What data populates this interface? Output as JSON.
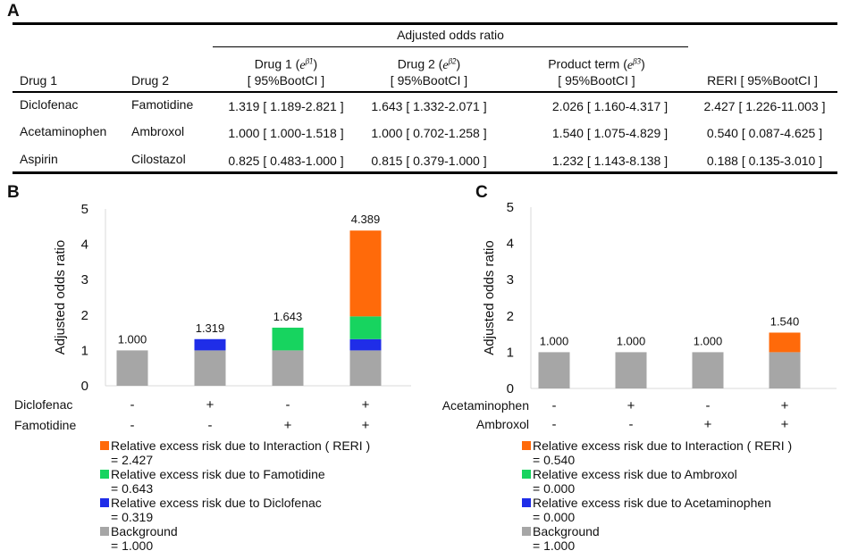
{
  "panel_a": {
    "letter": "A",
    "group_header": "Adjusted odds ratio",
    "col_drug1": "Drug 1",
    "col_drug2": "Drug 2",
    "col_beta1_line1": "Drug 1 (",
    "col_beta1_exp": "e^β̂1",
    "col_beta1_close": ")",
    "col_beta1_line2": "[ 95%BootCI ]",
    "col_beta2_line1": "Drug 2 (",
    "col_beta2_exp": "e^β̂2",
    "col_beta2_close": ")",
    "col_beta2_line2": "[ 95%BootCI ]",
    "col_beta3_line1": "Product term (",
    "col_beta3_exp": "e^β̂3",
    "col_beta3_close": ")",
    "col_beta3_line2": "[ 95%BootCI ]",
    "col_reri": "RERI [ 95%BootCI ]",
    "rows": [
      {
        "drug1": "Diclofenac",
        "drug2": "Famotidine",
        "b1": "1.319 [ 1.189-2.821 ]",
        "b2": "1.643 [ 1.332-2.071 ]",
        "b3": "2.026 [ 1.160-4.317 ]",
        "reri": "2.427 [ 1.226-11.003 ]"
      },
      {
        "drug1": "Acetaminophen",
        "drug2": "Ambroxol",
        "b1": "1.000 [ 1.000-1.518 ]",
        "b2": "1.000 [ 0.702-1.258 ]",
        "b3": "1.540 [ 1.075-4.829 ]",
        "reri": "0.540 [ 0.087-4.625 ]"
      },
      {
        "drug1": "Aspirin",
        "drug2": "Cilostazol",
        "b1": "0.825 [ 0.483-1.000 ]",
        "b2": "0.815 [ 0.379-1.000 ]",
        "b3": "1.232 [ 1.143-8.138 ]",
        "reri": "0.188 [ 0.135-3.010 ]"
      }
    ]
  },
  "colors": {
    "background": "#a6a6a6",
    "drug1": "#1f2de8",
    "drug2": "#17d45f",
    "interaction": "#ff6a0a"
  },
  "chart_data": [
    {
      "type": "bar",
      "stacked": true,
      "panel": "B",
      "ylabel": "Adjusted odds ratio",
      "ylim": [
        0,
        5
      ],
      "yticks": [
        "0",
        "1",
        "2",
        "3",
        "4",
        "5"
      ],
      "row_labels": [
        "Diclofenac",
        "Famotidine"
      ],
      "row_signs": [
        [
          "-",
          "+",
          "-",
          "+"
        ],
        [
          "-",
          "-",
          "+",
          "+"
        ]
      ],
      "totals": [
        "1.000",
        "1.319",
        "1.643",
        "4.389"
      ],
      "series": [
        {
          "name": "Background",
          "color_key": "background",
          "values": [
            1.0,
            1.0,
            1.0,
            1.0
          ]
        },
        {
          "name": "Relative excess risk due to Diclofenac",
          "color_key": "drug1",
          "values": [
            0,
            0.319,
            0,
            0.319
          ]
        },
        {
          "name": "Relative excess risk due to Famotidine",
          "color_key": "drug2",
          "values": [
            0,
            0,
            0.643,
            0.643
          ]
        },
        {
          "name": "Relative excess risk due to Interaction ( RERI )",
          "color_key": "interaction",
          "values": [
            0,
            0,
            0,
            2.427
          ]
        }
      ],
      "legend": [
        {
          "color_key": "interaction",
          "label": "Relative excess risk due to Interaction ( RERI )",
          "value": "= 2.427"
        },
        {
          "color_key": "drug2",
          "label": "Relative excess risk due to Famotidine",
          "value": "= 0.643"
        },
        {
          "color_key": "drug1",
          "label": "Relative excess risk due to Diclofenac",
          "value": "= 0.319"
        },
        {
          "color_key": "background",
          "label": "Background",
          "value": "= 1.000"
        }
      ]
    },
    {
      "type": "bar",
      "stacked": true,
      "panel": "C",
      "ylabel": "Adjusted odds ratio",
      "ylim": [
        0,
        5
      ],
      "yticks": [
        "0",
        "1",
        "2",
        "3",
        "4",
        "5"
      ],
      "row_labels": [
        "Acetaminophen",
        "Ambroxol"
      ],
      "row_signs": [
        [
          "-",
          "+",
          "-",
          "+"
        ],
        [
          "-",
          "-",
          "+",
          "+"
        ]
      ],
      "totals": [
        "1.000",
        "1.000",
        "1.000",
        "1.540"
      ],
      "series": [
        {
          "name": "Background",
          "color_key": "background",
          "values": [
            1.0,
            1.0,
            1.0,
            1.0
          ]
        },
        {
          "name": "Relative excess risk due to Acetaminophen",
          "color_key": "drug1",
          "values": [
            0,
            0,
            0,
            0
          ]
        },
        {
          "name": "Relative excess risk due to Ambroxol",
          "color_key": "drug2",
          "values": [
            0,
            0,
            0,
            0
          ]
        },
        {
          "name": "Relative excess risk due to Interaction ( RERI )",
          "color_key": "interaction",
          "values": [
            0,
            0,
            0,
            0.54
          ]
        }
      ],
      "legend": [
        {
          "color_key": "interaction",
          "label": "Relative excess risk due to Interaction ( RERI )",
          "value": "= 0.540"
        },
        {
          "color_key": "drug2",
          "label": "Relative excess risk due to Ambroxol",
          "value": "= 0.000"
        },
        {
          "color_key": "drug1",
          "label": "Relative excess risk due to Acetaminophen",
          "value": "= 0.000"
        },
        {
          "color_key": "background",
          "label": "Background",
          "value": "= 1.000"
        }
      ]
    }
  ]
}
